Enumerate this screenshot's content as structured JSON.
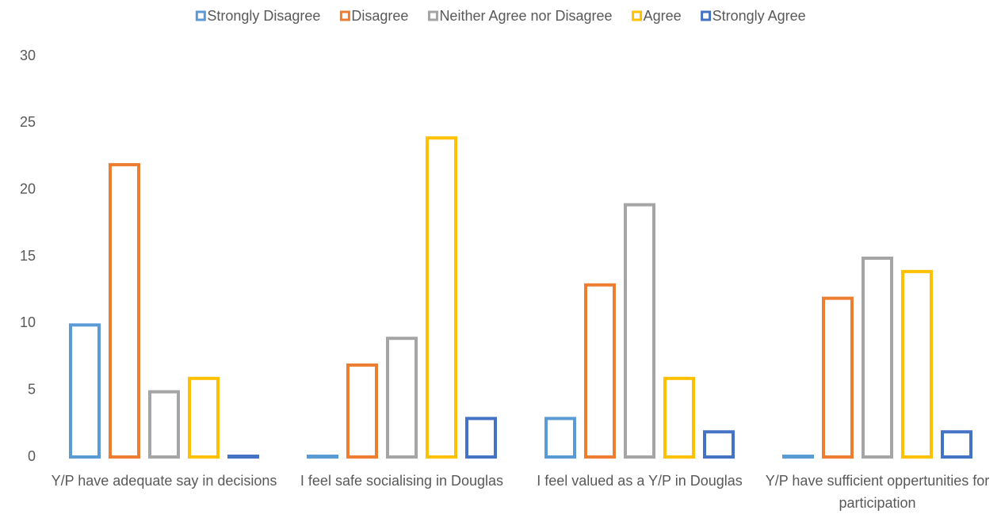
{
  "chart_data": {
    "type": "bar",
    "categories": [
      "Y/P have adequate say in decisions",
      "I feel safe socialising in Douglas",
      "I feel valued as a Y/P in Douglas",
      "Y/P have sufficient oppertunities for participation"
    ],
    "series": [
      {
        "name": "Strongly Disagree",
        "color": "#5b9bd5",
        "values": [
          10,
          0,
          3,
          0
        ]
      },
      {
        "name": "Disagree",
        "color": "#ed7d31",
        "values": [
          22,
          7,
          13,
          12
        ]
      },
      {
        "name": "Neither Agree nor Disagree",
        "color": "#a5a5a5",
        "values": [
          5,
          9,
          19,
          15
        ]
      },
      {
        "name": "Agree",
        "color": "#ffc000",
        "values": [
          6,
          24,
          6,
          14
        ]
      },
      {
        "name": "Strongly Agree",
        "color": "#4472c4",
        "values": [
          0,
          3,
          2,
          2
        ]
      }
    ],
    "ylim": [
      0,
      30
    ],
    "yticks": [
      0,
      5,
      10,
      15,
      20,
      25,
      30
    ],
    "grid": false,
    "legend": "top"
  }
}
